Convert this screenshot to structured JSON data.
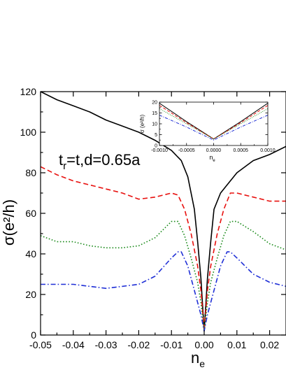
{
  "chart_data": [
    {
      "type": "line",
      "xlabel": "n",
      "xlabel_sub": "e",
      "ylabel": "σ(e²/h)",
      "annotation": "tr=t,d=0.65a",
      "xlim": [
        -0.05,
        0.025
      ],
      "ylim": [
        0,
        120
      ],
      "x_ticks": [
        -0.05,
        -0.04,
        -0.03,
        -0.02,
        -0.01,
        0.0,
        0.01,
        0.02
      ],
      "x_tick_labels": [
        "-0.05",
        "-0.04",
        "-0.03",
        "-0.02",
        "-0.01",
        "0.00",
        "0.01",
        "0.02"
      ],
      "y_ticks": [
        0,
        20,
        40,
        60,
        80,
        100,
        120
      ],
      "y_tick_labels": [
        "0",
        "20",
        "40",
        "60",
        "80",
        "100",
        "120"
      ],
      "series": [
        {
          "color": "#000000",
          "dash": "solid",
          "x": [
            -0.05,
            -0.045,
            -0.04,
            -0.035,
            -0.03,
            -0.025,
            -0.02,
            -0.015,
            -0.01,
            -0.007,
            -0.005,
            -0.003,
            -0.002,
            -0.001,
            0.0,
            0.001,
            0.002,
            0.003,
            0.005,
            0.007,
            0.01,
            0.015,
            0.02,
            0.025
          ],
          "y": [
            120,
            116,
            113,
            110,
            106,
            103,
            100,
            96,
            91,
            86,
            78,
            62,
            46,
            28,
            2,
            28,
            46,
            62,
            70,
            74,
            80,
            86,
            89,
            93
          ]
        },
        {
          "color": "#e8110f",
          "dash": "dashed",
          "x": [
            -0.05,
            -0.045,
            -0.04,
            -0.035,
            -0.03,
            -0.025,
            -0.02,
            -0.015,
            -0.01,
            -0.008,
            -0.006,
            -0.004,
            -0.002,
            -0.001,
            0.0,
            0.001,
            0.002,
            0.004,
            0.006,
            0.008,
            0.01,
            0.015,
            0.02,
            0.025
          ],
          "y": [
            83,
            79,
            76,
            74,
            72,
            70,
            67,
            68,
            70,
            69,
            62,
            50,
            34,
            22,
            2,
            22,
            34,
            50,
            62,
            70,
            70,
            68,
            66,
            66
          ]
        },
        {
          "color": "#1a8a1a",
          "dash": "dotted",
          "x": [
            -0.05,
            -0.045,
            -0.04,
            -0.035,
            -0.03,
            -0.025,
            -0.02,
            -0.015,
            -0.01,
            -0.008,
            -0.006,
            -0.004,
            -0.002,
            -0.001,
            0.0,
            0.001,
            0.002,
            0.004,
            0.006,
            0.008,
            0.01,
            0.015,
            0.02,
            0.025
          ],
          "y": [
            49,
            46,
            46,
            44,
            43,
            43,
            44,
            48,
            56,
            56,
            49,
            38,
            26,
            16,
            2,
            16,
            26,
            38,
            49,
            56,
            56,
            51,
            45,
            42
          ]
        },
        {
          "color": "#1f2fd6",
          "dash": "dashdot",
          "x": [
            -0.05,
            -0.045,
            -0.04,
            -0.035,
            -0.03,
            -0.025,
            -0.02,
            -0.015,
            -0.01,
            -0.008,
            -0.007,
            -0.005,
            -0.003,
            -0.001,
            0.0,
            0.001,
            0.003,
            0.005,
            0.007,
            0.008,
            0.01,
            0.015,
            0.02,
            0.025
          ],
          "y": [
            25,
            25,
            25,
            24,
            23,
            24,
            25,
            29,
            38,
            41,
            41,
            34,
            22,
            10,
            2,
            10,
            22,
            34,
            41,
            41,
            38,
            30,
            26,
            24
          ]
        }
      ]
    },
    {
      "type": "line",
      "xlabel": "n",
      "xlabel_sub": "e",
      "ylabel": "σ (e²/h)",
      "xlim": [
        -0.001,
        0.001
      ],
      "ylim": [
        0,
        20
      ],
      "x_ticks": [
        -0.001,
        -0.0005,
        0.0,
        0.0005,
        0.001
      ],
      "x_tick_labels": [
        "-0.0010",
        "-0.0005",
        "0.0000",
        "0.0005",
        "0.0010"
      ],
      "y_ticks": [
        0,
        5,
        10,
        15,
        20
      ],
      "y_tick_labels": [
        "0",
        "5",
        "10",
        "15",
        "20"
      ],
      "series": [
        {
          "color": "#000000",
          "dash": "solid",
          "x": [
            -0.001,
            -0.0005,
            0.0,
            0.0005,
            0.001
          ],
          "y": [
            19.5,
            11,
            3,
            11,
            19.5
          ]
        },
        {
          "color": "#e8110f",
          "dash": "dashed",
          "x": [
            -0.001,
            -0.0005,
            0.0,
            0.0005,
            0.001
          ],
          "y": [
            18.5,
            10.5,
            3,
            10.5,
            18.5
          ]
        },
        {
          "color": "#1a8a1a",
          "dash": "dotted",
          "x": [
            -0.001,
            -0.0005,
            0.0,
            0.0005,
            0.001
          ],
          "y": [
            17,
            10,
            3,
            10,
            17
          ]
        },
        {
          "color": "#1f2fd6",
          "dash": "dashdot",
          "x": [
            -0.001,
            -0.0005,
            0.0,
            0.0005,
            0.001
          ],
          "y": [
            14,
            8.5,
            2.5,
            8.5,
            14
          ]
        }
      ]
    }
  ]
}
